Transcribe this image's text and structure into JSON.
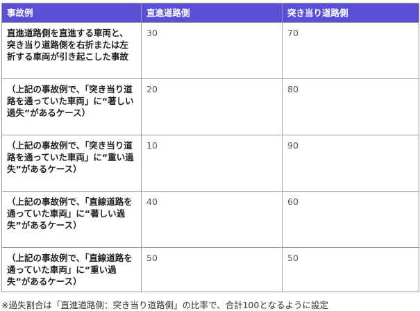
{
  "table": {
    "header": [
      "事故例",
      "直進道路側",
      "突き当り道路側"
    ],
    "rows": [
      [
        "直進道路側を直進する車両と、突き当り道路側を右折または左折する車両が引き起こした事故",
        30,
        70
      ],
      [
        "（上記の事故例で、「突き当り道路を通っていた車両」に“著しい過失”があるケース）",
        20,
        80
      ],
      [
        "（上記の事故例で、「突き当り道路を通っていた車両」に“重い過失”があるケース）",
        10,
        90
      ],
      [
        "（上記の事故例で、「直線道路を通っていた車両」に“著しい過失”があるケース）",
        40,
        60
      ],
      [
        "（上記の事故例で、「直線道路を通っていた車両」に“重い過失”があるケース）",
        50,
        50
      ]
    ]
  },
  "note": "※過失割合は「直進道路側：突き当り道路側」の比率で、合計100となるように設定"
}
